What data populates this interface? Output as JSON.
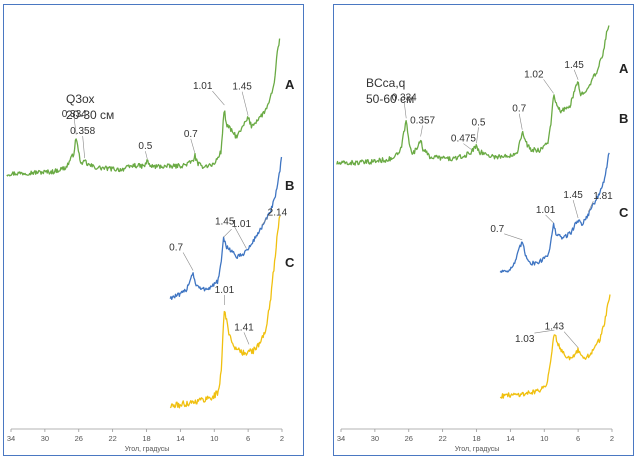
{
  "chart_data": [
    {
      "type": "line",
      "sample_label": [
        "Q3ох",
        "20-30 см"
      ],
      "xlabel": "Угол, градусы",
      "x_ticks": [
        34,
        30,
        26,
        22,
        18,
        14,
        10,
        6,
        2
      ],
      "xlim": [
        34,
        2
      ],
      "series": [
        {
          "name": "A",
          "color": "#6aaa44",
          "points": [
            [
              34.5,
              0.345
            ],
            [
              32,
              0.35
            ],
            [
              29,
              0.355
            ],
            [
              27.5,
              0.375
            ],
            [
              26.6,
              0.44
            ],
            [
              26.3,
              0.52
            ],
            [
              26.0,
              0.44
            ],
            [
              25.6,
              0.38
            ],
            [
              25.3,
              0.41
            ],
            [
              25.0,
              0.39
            ],
            [
              24,
              0.375
            ],
            [
              21,
              0.365
            ],
            [
              20.2,
              0.375
            ],
            [
              19.5,
              0.385
            ],
            [
              18.3,
              0.38
            ],
            [
              17.9,
              0.405
            ],
            [
              17.5,
              0.38
            ],
            [
              15,
              0.38
            ],
            [
              13.6,
              0.385
            ],
            [
              12.5,
              0.405
            ],
            [
              12.3,
              0.435
            ],
            [
              12.0,
              0.395
            ],
            [
              11.5,
              0.38
            ],
            [
              10.0,
              0.39
            ],
            [
              9.2,
              0.45
            ],
            [
              8.8,
              0.66
            ],
            [
              8.6,
              0.58
            ],
            [
              8.0,
              0.55
            ],
            [
              7.4,
              0.52
            ],
            [
              7.0,
              0.54
            ],
            [
              6.3,
              0.59
            ],
            [
              6.0,
              0.61
            ],
            [
              5.6,
              0.57
            ],
            [
              4.9,
              0.6
            ],
            [
              4.2,
              0.63
            ],
            [
              3.6,
              0.67
            ],
            [
              3.0,
              0.75
            ],
            [
              2.6,
              0.9
            ],
            [
              2.2,
              1.0
            ]
          ]
        },
        {
          "name": "B",
          "color": "#3f75c2",
          "points": [
            [
              15.2,
              0.135
            ],
            [
              14.0,
              0.15
            ],
            [
              13.3,
              0.175
            ],
            [
              12.8,
              0.23
            ],
            [
              12.5,
              0.26
            ],
            [
              12.2,
              0.2
            ],
            [
              11.5,
              0.175
            ],
            [
              10.5,
              0.185
            ],
            [
              9.6,
              0.215
            ],
            [
              9.2,
              0.3
            ],
            [
              8.9,
              0.425
            ],
            [
              8.6,
              0.39
            ],
            [
              8.0,
              0.37
            ],
            [
              7.3,
              0.335
            ],
            [
              6.8,
              0.345
            ],
            [
              6.3,
              0.365
            ],
            [
              5.8,
              0.385
            ],
            [
              5.2,
              0.43
            ],
            [
              4.6,
              0.47
            ],
            [
              4.0,
              0.51
            ],
            [
              3.4,
              0.56
            ],
            [
              2.8,
              0.63
            ],
            [
              2.3,
              0.75
            ],
            [
              2.0,
              0.84
            ]
          ]
        },
        {
          "name": "C",
          "color": "#f0c010",
          "points": [
            [
              15.2,
              0.03
            ],
            [
              14.0,
              0.035
            ],
            [
              12.5,
              0.045
            ],
            [
              11.0,
              0.055
            ],
            [
              10.0,
              0.065
            ],
            [
              9.5,
              0.08
            ],
            [
              9.2,
              0.14
            ],
            [
              9.0,
              0.26
            ],
            [
              8.8,
              0.37
            ],
            [
              8.6,
              0.33
            ],
            [
              8.2,
              0.27
            ],
            [
              7.6,
              0.235
            ],
            [
              7.0,
              0.215
            ],
            [
              6.2,
              0.21
            ],
            [
              5.9,
              0.235
            ],
            [
              5.7,
              0.215
            ],
            [
              5.2,
              0.225
            ],
            [
              4.6,
              0.245
            ],
            [
              4.0,
              0.285
            ],
            [
              3.4,
              0.38
            ],
            [
              2.9,
              0.52
            ],
            [
              2.5,
              0.63
            ],
            [
              2.2,
              0.7
            ]
          ]
        }
      ],
      "peaks": [
        {
          "label": "0.334",
          "x": 26.3,
          "series": "A"
        },
        {
          "label": "0.358",
          "x": 25.3,
          "series": "A"
        },
        {
          "label": "0.5",
          "x": 17.9,
          "series": "A"
        },
        {
          "label": "0.7",
          "x": 12.3,
          "series": "A"
        },
        {
          "label": "1.01",
          "x": 8.8,
          "series": "A"
        },
        {
          "label": "1.45",
          "x": 6.0,
          "series": "A"
        },
        {
          "label": "1.01",
          "x": 8.9,
          "series": "B"
        },
        {
          "label": "2.14",
          "x": 4.4,
          "series": "B"
        },
        {
          "label": "1.45",
          "x": 6.2,
          "series": "B"
        },
        {
          "label": "0.7",
          "x": 12.5,
          "series": "B"
        },
        {
          "label": "1.01",
          "x": 8.8,
          "series": "C"
        },
        {
          "label": "1.41",
          "x": 5.9,
          "series": "C"
        }
      ]
    },
    {
      "type": "line",
      "sample_label": [
        "BCca,q",
        "50-60 см"
      ],
      "xlabel": "Угол, градусы",
      "x_ticks": [
        34,
        30,
        26,
        22,
        18,
        14,
        10,
        6,
        2
      ],
      "xlim": [
        34,
        2
      ],
      "series": [
        {
          "name": "A",
          "color": "#6aaa44",
          "points": [
            [
              34.5,
              0.39
            ],
            [
              31,
              0.395
            ],
            [
              28,
              0.41
            ],
            [
              27.0,
              0.44
            ],
            [
              26.6,
              0.52
            ],
            [
              26.3,
              0.58
            ],
            [
              26.0,
              0.49
            ],
            [
              25.5,
              0.43
            ],
            [
              25.0,
              0.46
            ],
            [
              24.6,
              0.5
            ],
            [
              24.3,
              0.45
            ],
            [
              23.5,
              0.42
            ],
            [
              21,
              0.41
            ],
            [
              19.5,
              0.42
            ],
            [
              18.5,
              0.445
            ],
            [
              18.0,
              0.47
            ],
            [
              17.6,
              0.44
            ],
            [
              16,
              0.42
            ],
            [
              14.5,
              0.42
            ],
            [
              13.2,
              0.44
            ],
            [
              12.6,
              0.53
            ],
            [
              12.3,
              0.49
            ],
            [
              11.6,
              0.45
            ],
            [
              10.5,
              0.45
            ],
            [
              9.6,
              0.48
            ],
            [
              9.2,
              0.57
            ],
            [
              8.9,
              0.69
            ],
            [
              8.6,
              0.65
            ],
            [
              8.1,
              0.62
            ],
            [
              7.4,
              0.63
            ],
            [
              6.9,
              0.65
            ],
            [
              6.3,
              0.72
            ],
            [
              6.0,
              0.75
            ],
            [
              5.7,
              0.69
            ],
            [
              5.0,
              0.72
            ],
            [
              4.3,
              0.76
            ],
            [
              3.7,
              0.8
            ],
            [
              3.1,
              0.87
            ],
            [
              2.7,
              0.95
            ],
            [
              2.3,
              1.02
            ]
          ]
        },
        {
          "name": "B",
          "color": "#3f75c2",
          "points": [
            [
              15.2,
              0.25
            ],
            [
              14.0,
              0.26
            ],
            [
              13.4,
              0.3
            ],
            [
              12.9,
              0.37
            ],
            [
              12.6,
              0.4
            ],
            [
              12.2,
              0.33
            ],
            [
              11.5,
              0.29
            ],
            [
              10.5,
              0.3
            ],
            [
              9.5,
              0.34
            ],
            [
              9.1,
              0.43
            ],
            [
              8.9,
              0.485
            ],
            [
              8.6,
              0.44
            ],
            [
              8.0,
              0.42
            ],
            [
              7.4,
              0.43
            ],
            [
              6.8,
              0.45
            ],
            [
              6.3,
              0.49
            ],
            [
              6.0,
              0.51
            ],
            [
              5.5,
              0.49
            ],
            [
              4.8,
              0.54
            ],
            [
              4.2,
              0.59
            ],
            [
              3.6,
              0.63
            ],
            [
              3.0,
              0.7
            ],
            [
              2.6,
              0.78
            ],
            [
              2.3,
              0.86
            ]
          ]
        },
        {
          "name": "C",
          "color": "#f0c010",
          "points": [
            [
              15.2,
              0.09
            ],
            [
              14,
              0.095
            ],
            [
              12.5,
              0.1
            ],
            [
              11.2,
              0.11
            ],
            [
              10.3,
              0.12
            ],
            [
              9.7,
              0.15
            ],
            [
              9.3,
              0.23
            ],
            [
              9.0,
              0.33
            ],
            [
              8.8,
              0.38
            ],
            [
              8.5,
              0.34
            ],
            [
              8.0,
              0.3
            ],
            [
              7.4,
              0.27
            ],
            [
              6.9,
              0.26
            ],
            [
              6.4,
              0.27
            ],
            [
              6.0,
              0.3
            ],
            [
              5.7,
              0.27
            ],
            [
              5.2,
              0.26
            ],
            [
              4.6,
              0.28
            ],
            [
              4.0,
              0.31
            ],
            [
              3.4,
              0.35
            ],
            [
              2.9,
              0.42
            ],
            [
              2.5,
              0.5
            ],
            [
              2.2,
              0.56
            ]
          ]
        }
      ],
      "peaks": [
        {
          "label": "0.334",
          "x": 26.3,
          "series": "A"
        },
        {
          "label": "0.357",
          "x": 24.6,
          "series": "A"
        },
        {
          "label": "0.475",
          "x": 18.6,
          "series": "A"
        },
        {
          "label": "0.5",
          "x": 18.0,
          "series": "A"
        },
        {
          "label": "0.7",
          "x": 12.6,
          "series": "A"
        },
        {
          "label": "1.02",
          "x": 8.9,
          "series": "A"
        },
        {
          "label": "1.45",
          "x": 6.0,
          "series": "A"
        },
        {
          "label": "1.01",
          "x": 8.9,
          "series": "B"
        },
        {
          "label": "1.45",
          "x": 6.0,
          "series": "B"
        },
        {
          "label": "1.81",
          "x": 4.8,
          "series": "B"
        },
        {
          "label": "0.7",
          "x": 12.6,
          "series": "B"
        },
        {
          "label": "1.03",
          "x": 8.8,
          "series": "C"
        },
        {
          "label": "1.43",
          "x": 6.0,
          "series": "C"
        }
      ]
    }
  ]
}
